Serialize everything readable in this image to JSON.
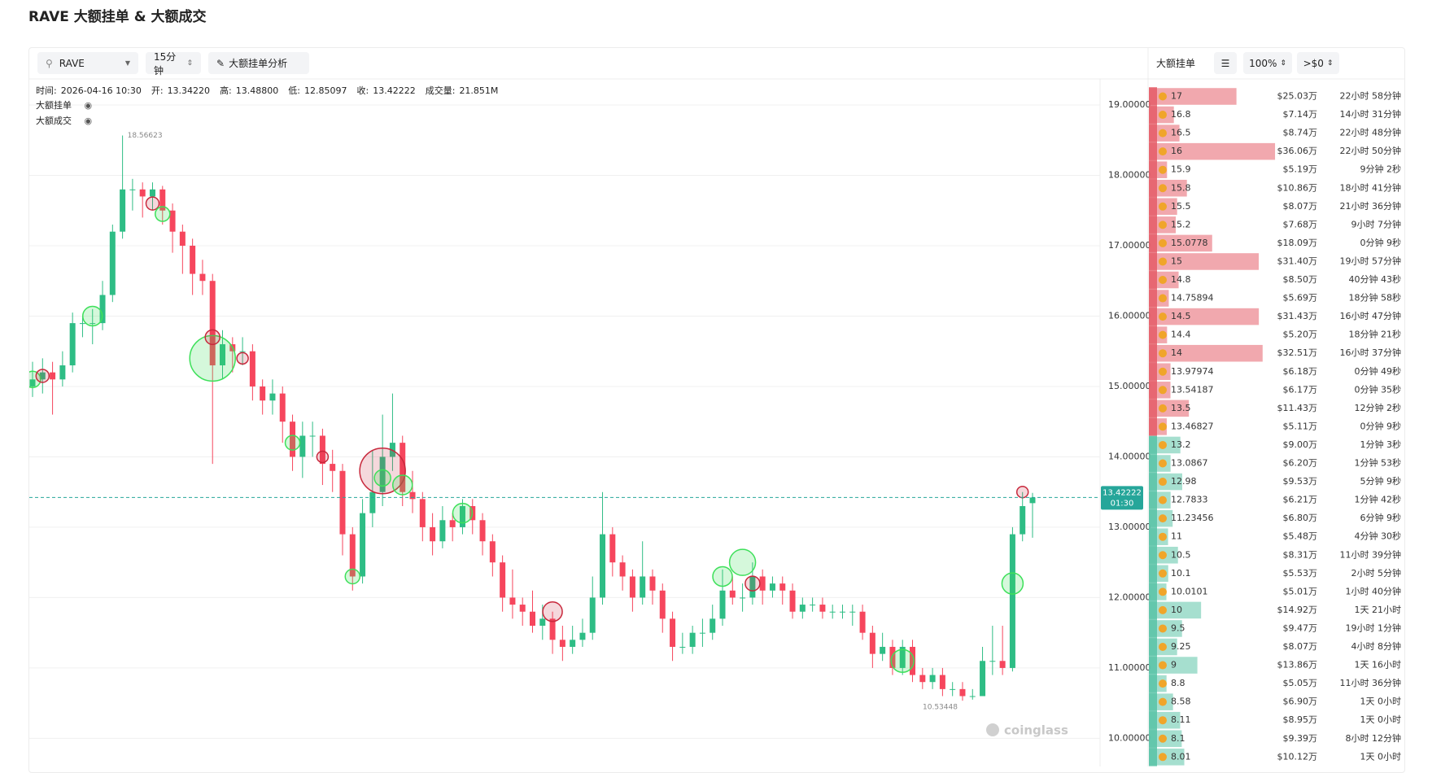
{
  "header": {
    "title": "RAVE 大额挂单 & 大额成交"
  },
  "toolbar": {
    "symbol": "RAVE",
    "interval": "15分钟",
    "analysis": "大额挂单分析"
  },
  "info": [
    {
      "label": "时间:",
      "value": "2026-04-16 10:30"
    },
    {
      "label": "开:",
      "value": "13.34220"
    },
    {
      "label": "高:",
      "value": "13.48800"
    },
    {
      "label": "低:",
      "value": "12.85097"
    },
    {
      "label": "收:",
      "value": "13.42222"
    },
    {
      "label": "成交量:",
      "value": "21.851M"
    }
  ],
  "legend": [
    "大额挂单",
    "大额成交"
  ],
  "watermark": "coinglass",
  "chart_data": {
    "type": "candlestick",
    "open": [
      15.0,
      15.1,
      15.2,
      15.1,
      15.3,
      15.9,
      15.9,
      15.9,
      16.3,
      17.2,
      17.8,
      17.8,
      17.7,
      17.8,
      17.5,
      17.2,
      17.0,
      16.6,
      16.5,
      15.3,
      15.6,
      15.5,
      15.5,
      15.0,
      14.8,
      14.9,
      14.5,
      14.0,
      14.3,
      14.3,
      13.9,
      13.8,
      12.9,
      12.3,
      13.2,
      13.5,
      14.0,
      14.2,
      13.5,
      13.4,
      13.0,
      12.8,
      13.1,
      13.0,
      13.3,
      13.1,
      12.8,
      12.5,
      12.0,
      11.9,
      11.8,
      11.6,
      11.7,
      11.4,
      11.3,
      11.4,
      11.5,
      12.0,
      12.9,
      12.5,
      12.3,
      12.0,
      12.3,
      12.1,
      11.7,
      11.3,
      11.3,
      11.5,
      11.5,
      11.7,
      12.1,
      12.0,
      12.0,
      12.3,
      12.1,
      12.2,
      12.1,
      11.8,
      11.9,
      11.9,
      11.8,
      11.8,
      11.8,
      11.8,
      11.5,
      11.2,
      11.3,
      11.0,
      11.3,
      10.9,
      10.8,
      10.9,
      10.7,
      10.7,
      10.6,
      10.6,
      11.1,
      11.1,
      11.0,
      12.9,
      13.3422
    ],
    "high": [
      15.35,
      15.4,
      15.35,
      15.5,
      16.05,
      16.0,
      16.1,
      16.5,
      17.3,
      18.56623,
      17.95,
      17.9,
      17.9,
      17.85,
      17.6,
      17.3,
      17.1,
      16.8,
      16.6,
      15.8,
      15.7,
      15.7,
      15.6,
      15.1,
      15.1,
      15.0,
      14.6,
      14.5,
      14.5,
      14.4,
      14.1,
      13.9,
      13.0,
      13.4,
      14.1,
      14.6,
      14.9,
      14.3,
      13.8,
      13.5,
      13.2,
      13.3,
      13.2,
      13.4,
      13.4,
      13.2,
      12.9,
      12.6,
      12.4,
      12.0,
      12.1,
      11.9,
      11.8,
      11.6,
      11.6,
      11.7,
      12.3,
      13.5,
      13.0,
      12.6,
      12.4,
      12.8,
      12.4,
      12.2,
      11.8,
      11.5,
      11.6,
      11.7,
      11.9,
      12.4,
      12.3,
      12.2,
      12.5,
      12.4,
      12.3,
      12.3,
      12.2,
      12.0,
      12.0,
      12.0,
      11.9,
      11.9,
      11.9,
      11.9,
      11.6,
      11.5,
      11.4,
      11.4,
      11.4,
      11.0,
      11.0,
      11.0,
      10.8,
      10.8,
      10.7,
      11.3,
      11.6,
      11.6,
      13.0,
      13.5,
      13.488
    ],
    "low": [
      14.85,
      14.9,
      14.6,
      15.0,
      15.2,
      15.7,
      15.6,
      15.8,
      16.2,
      17.1,
      17.5,
      17.4,
      17.5,
      17.3,
      16.9,
      16.6,
      16.3,
      16.3,
      13.9,
      15.1,
      15.2,
      15.3,
      14.8,
      14.6,
      14.6,
      14.2,
      13.8,
      13.7,
      14.0,
      13.6,
      13.5,
      12.6,
      12.1,
      12.2,
      13.0,
      13.3,
      13.8,
      13.3,
      13.2,
      12.8,
      12.6,
      12.7,
      12.8,
      12.9,
      12.9,
      12.6,
      12.3,
      11.8,
      11.7,
      11.6,
      11.5,
      11.4,
      11.2,
      11.1,
      11.2,
      11.3,
      11.4,
      11.9,
      12.3,
      12.1,
      11.8,
      11.9,
      11.9,
      11.5,
      11.1,
      11.2,
      11.2,
      11.3,
      11.4,
      11.6,
      11.9,
      11.8,
      11.9,
      11.9,
      12.0,
      11.9,
      11.7,
      11.7,
      11.8,
      11.7,
      11.7,
      11.7,
      11.6,
      11.4,
      11.0,
      11.1,
      10.9,
      10.9,
      10.8,
      10.7,
      10.7,
      10.6,
      10.6,
      10.53448,
      10.55,
      10.6,
      10.9,
      10.9,
      10.95,
      12.8,
      12.85097
    ],
    "close": [
      15.1,
      15.2,
      15.1,
      15.3,
      15.9,
      15.9,
      15.9,
      16.3,
      17.2,
      17.8,
      17.8,
      17.7,
      17.8,
      17.5,
      17.2,
      17.0,
      16.6,
      16.5,
      15.3,
      15.6,
      15.5,
      15.5,
      15.0,
      14.8,
      14.9,
      14.5,
      14.0,
      14.3,
      14.3,
      13.9,
      13.8,
      12.9,
      12.3,
      13.2,
      13.5,
      14.0,
      14.2,
      13.5,
      13.4,
      13.0,
      12.8,
      13.1,
      13.0,
      13.3,
      13.1,
      12.8,
      12.5,
      12.0,
      11.9,
      11.8,
      11.6,
      11.7,
      11.4,
      11.3,
      11.4,
      11.5,
      12.0,
      12.9,
      12.5,
      12.3,
      12.0,
      12.3,
      12.1,
      11.7,
      11.3,
      11.3,
      11.5,
      11.5,
      11.7,
      12.1,
      12.0,
      12.0,
      12.3,
      12.1,
      12.2,
      12.1,
      11.8,
      11.9,
      11.9,
      11.8,
      11.8,
      11.8,
      11.8,
      11.5,
      11.2,
      11.3,
      11.0,
      11.3,
      10.9,
      10.8,
      10.9,
      10.7,
      10.7,
      10.6,
      10.6,
      11.1,
      11.1,
      11.0,
      12.9,
      13.3,
      13.42222
    ],
    "up_color": "#2ebd85",
    "down_color": "#f6465d",
    "ylim": [
      9.6,
      19.37
    ],
    "yticks": [
      {
        "value": 10,
        "label": "10.00000"
      },
      {
        "value": 11,
        "label": "11.00000"
      },
      {
        "value": 12,
        "label": "12.00000"
      },
      {
        "value": 13,
        "label": "13.00000"
      },
      {
        "value": 14,
        "label": "14.00000"
      },
      {
        "value": 15,
        "label": "15.00000"
      },
      {
        "value": 16,
        "label": "16.00000"
      },
      {
        "value": 17,
        "label": "17.00000"
      },
      {
        "value": 18,
        "label": "18.00000"
      },
      {
        "value": 19,
        "label": "19.00000"
      }
    ],
    "grid": true,
    "current_price": 13.42222,
    "countdown": "01:30",
    "price_color": "#26a69a",
    "trades": {
      "index": [
        0,
        1,
        6,
        12,
        13,
        18,
        18,
        21,
        26,
        29,
        35,
        35,
        37,
        43,
        32,
        52,
        69,
        71,
        72,
        87,
        98,
        99
      ],
      "price": [
        15.1,
        15.15,
        16.0,
        17.6,
        17.45,
        15.4,
        15.7,
        15.4,
        14.2,
        14.0,
        13.8,
        13.7,
        13.6,
        13.2,
        12.3,
        11.8,
        12.3,
        12.5,
        12.2,
        11.1,
        12.2,
        13.5
      ],
      "size": [
        10,
        8,
        12,
        8,
        9,
        28,
        9,
        7,
        9,
        7,
        28,
        10,
        12,
        12,
        9,
        12,
        12,
        16,
        9,
        14,
        13,
        7
      ],
      "side": [
        "buy",
        "sell",
        "buy",
        "sell",
        "buy",
        "buy",
        "sell",
        "sell",
        "buy",
        "sell",
        "sell",
        "buy",
        "buy",
        "buy",
        "buy",
        "sell",
        "buy",
        "buy",
        "sell",
        "buy",
        "buy",
        "sell"
      ],
      "buy_color": "#3ee05a",
      "sell_color": "#c8283c"
    }
  },
  "order_book": {
    "title": "大额挂单",
    "depth": "100%",
    "filter": ">$0",
    "ask_color": "#e5606c",
    "bid_color": "#5cc4a8",
    "rows": [
      {
        "price": "17",
        "amount": {
          "value": 25.03,
          "label": "$25.03万"
        },
        "time": "22小时 58分钟",
        "side": "ask"
      },
      {
        "price": "16.8",
        "amount": {
          "value": 7.14,
          "label": "$7.14万"
        },
        "time": "14小时 31分钟",
        "side": "ask"
      },
      {
        "price": "16.5",
        "amount": {
          "value": 8.74,
          "label": "$8.74万"
        },
        "time": "22小时 48分钟",
        "side": "ask"
      },
      {
        "price": "16",
        "amount": {
          "value": 36.06,
          "label": "$36.06万"
        },
        "time": "22小时 50分钟",
        "side": "ask"
      },
      {
        "price": "15.9",
        "amount": {
          "value": 5.19,
          "label": "$5.19万"
        },
        "time": "9分钟 2秒",
        "side": "ask"
      },
      {
        "price": "15.8",
        "amount": {
          "value": 10.86,
          "label": "$10.86万"
        },
        "time": "18小时 41分钟",
        "side": "ask"
      },
      {
        "price": "15.5",
        "amount": {
          "value": 8.07,
          "label": "$8.07万"
        },
        "time": "21小时 36分钟",
        "side": "ask"
      },
      {
        "price": "15.2",
        "amount": {
          "value": 7.68,
          "label": "$7.68万"
        },
        "time": "9小时 7分钟",
        "side": "ask"
      },
      {
        "price": "15.0778",
        "amount": {
          "value": 18.09,
          "label": "$18.09万"
        },
        "time": "0分钟 9秒",
        "side": "ask"
      },
      {
        "price": "15",
        "amount": {
          "value": 31.4,
          "label": "$31.40万"
        },
        "time": "19小时 57分钟",
        "side": "ask"
      },
      {
        "price": "14.8",
        "amount": {
          "value": 8.5,
          "label": "$8.50万"
        },
        "time": "40分钟 43秒",
        "side": "ask"
      },
      {
        "price": "14.75894",
        "amount": {
          "value": 5.69,
          "label": "$5.69万"
        },
        "time": "18分钟 58秒",
        "side": "ask"
      },
      {
        "price": "14.5",
        "amount": {
          "value": 31.43,
          "label": "$31.43万"
        },
        "time": "16小时 47分钟",
        "side": "ask"
      },
      {
        "price": "14.4",
        "amount": {
          "value": 5.2,
          "label": "$5.20万"
        },
        "time": "18分钟 21秒",
        "side": "ask"
      },
      {
        "price": "14",
        "amount": {
          "value": 32.51,
          "label": "$32.51万"
        },
        "time": "16小时 37分钟",
        "side": "ask"
      },
      {
        "price": "13.97974",
        "amount": {
          "value": 6.18,
          "label": "$6.18万"
        },
        "time": "0分钟 49秒",
        "side": "ask"
      },
      {
        "price": "13.54187",
        "amount": {
          "value": 6.17,
          "label": "$6.17万"
        },
        "time": "0分钟 35秒",
        "side": "ask"
      },
      {
        "price": "13.5",
        "amount": {
          "value": 11.43,
          "label": "$11.43万"
        },
        "time": "12分钟 2秒",
        "side": "ask"
      },
      {
        "price": "13.46827",
        "amount": {
          "value": 5.11,
          "label": "$5.11万"
        },
        "time": "0分钟 9秒",
        "side": "ask"
      },
      {
        "price": "13.2",
        "amount": {
          "value": 9.0,
          "label": "$9.00万"
        },
        "time": "1分钟 3秒",
        "side": "bid"
      },
      {
        "price": "13.0867",
        "amount": {
          "value": 6.2,
          "label": "$6.20万"
        },
        "time": "1分钟 53秒",
        "side": "bid"
      },
      {
        "price": "12.98",
        "amount": {
          "value": 9.53,
          "label": "$9.53万"
        },
        "time": "5分钟 9秒",
        "side": "bid"
      },
      {
        "price": "12.7833",
        "amount": {
          "value": 6.21,
          "label": "$6.21万"
        },
        "time": "1分钟 42秒",
        "side": "bid"
      },
      {
        "price": "11.23456",
        "amount": {
          "value": 6.8,
          "label": "$6.80万"
        },
        "time": "6分钟 9秒",
        "side": "bid"
      },
      {
        "price": "11",
        "amount": {
          "value": 5.48,
          "label": "$5.48万"
        },
        "time": "4分钟 30秒",
        "side": "bid"
      },
      {
        "price": "10.5",
        "amount": {
          "value": 8.31,
          "label": "$8.31万"
        },
        "time": "11小时 39分钟",
        "side": "bid"
      },
      {
        "price": "10.1",
        "amount": {
          "value": 5.53,
          "label": "$5.53万"
        },
        "time": "2小时 5分钟",
        "side": "bid"
      },
      {
        "price": "10.0101",
        "amount": {
          "value": 5.01,
          "label": "$5.01万"
        },
        "time": "1小时 40分钟",
        "side": "bid"
      },
      {
        "price": "10",
        "amount": {
          "value": 14.92,
          "label": "$14.92万"
        },
        "time": "1天 21小时",
        "side": "bid"
      },
      {
        "price": "9.5",
        "amount": {
          "value": 9.47,
          "label": "$9.47万"
        },
        "time": "19小时 1分钟",
        "side": "bid"
      },
      {
        "price": "9.25",
        "amount": {
          "value": 8.07,
          "label": "$8.07万"
        },
        "time": "4小时 8分钟",
        "side": "bid"
      },
      {
        "price": "9",
        "amount": {
          "value": 13.86,
          "label": "$13.86万"
        },
        "time": "1天 16小时",
        "side": "bid"
      },
      {
        "price": "8.8",
        "amount": {
          "value": 5.05,
          "label": "$5.05万"
        },
        "time": "11小时 36分钟",
        "side": "bid"
      },
      {
        "price": "8.58",
        "amount": {
          "value": 6.9,
          "label": "$6.90万"
        },
        "time": "1天 0小时",
        "side": "bid"
      },
      {
        "price": "8.11",
        "amount": {
          "value": 8.95,
          "label": "$8.95万"
        },
        "time": "1天 0小时",
        "side": "bid"
      },
      {
        "price": "8.1",
        "amount": {
          "value": 9.39,
          "label": "$9.39万"
        },
        "time": "8小时 12分钟",
        "side": "bid"
      },
      {
        "price": "8.01",
        "amount": {
          "value": 10.12,
          "label": "$10.12万"
        },
        "time": "1天 0小时",
        "side": "bid"
      }
    ]
  }
}
